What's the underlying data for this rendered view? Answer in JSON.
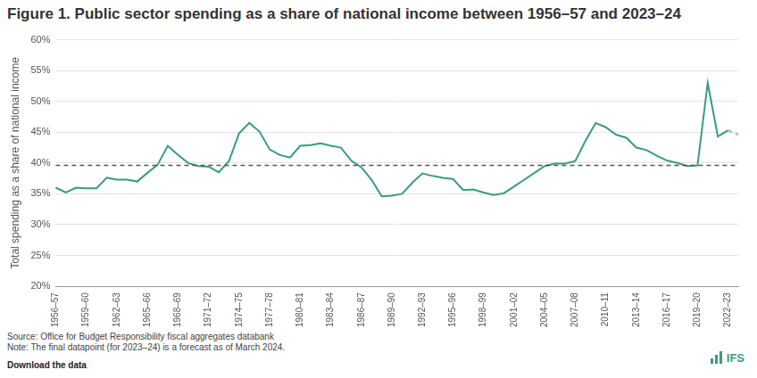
{
  "chart_data": {
    "type": "line",
    "title": "Figure 1. Public sector spending as a share of national income between 1956–57 and 2023–24",
    "y_label": "Total spending as a share of national income",
    "source": "Source: Office for Budget Responsibility fiscal aggregates databank",
    "note": "Note: The final datapoint (for 2023–24) is a forecast as of March 2024.",
    "download": "Download the data",
    "logo": "IFS",
    "categories": [
      "1956–57",
      null,
      null,
      "1959–60",
      null,
      null,
      "1962–63",
      null,
      null,
      "1965–66",
      null,
      null,
      "1968–69",
      null,
      null,
      "1971–72",
      null,
      null,
      "1974–75",
      null,
      null,
      "1977–78",
      null,
      null,
      "1980–81",
      null,
      null,
      "1983–84",
      null,
      null,
      "1986–87",
      null,
      null,
      "1989–90",
      null,
      null,
      "1992–93",
      null,
      null,
      "1995–96",
      null,
      null,
      "1998–99",
      null,
      null,
      "2001–02",
      null,
      null,
      "2004–05",
      null,
      null,
      "2007–08",
      null,
      null,
      "2010–11",
      null,
      null,
      "2013–14",
      null,
      null,
      "2016–17",
      null,
      null,
      "2019–20",
      null,
      null,
      "2022–23",
      null
    ],
    "series": [
      {
        "color": "#3a9c7a",
        "line_style": "solid",
        "values": [
          36.0,
          35.2,
          36.0,
          35.9,
          35.9,
          37.6,
          37.3,
          37.3,
          37.0,
          38.4,
          39.7,
          42.8,
          41.3,
          40.0,
          39.5,
          39.4,
          38.5,
          40.3,
          44.8,
          46.5,
          45.1,
          42.2,
          41.3,
          40.9,
          42.8,
          42.9,
          43.2,
          42.8,
          42.5,
          40.4,
          39.3,
          37.3,
          34.6,
          34.7,
          35.0,
          36.8,
          38.3,
          37.9,
          37.6,
          37.4,
          35.6,
          35.7,
          35.2,
          34.8,
          35.1,
          36.2,
          37.3,
          38.4,
          39.5,
          39.9,
          39.9,
          40.3,
          43.6,
          46.5,
          45.8,
          44.6,
          44.1,
          42.5,
          42.1,
          41.2,
          40.4,
          40.0,
          39.5,
          39.6,
          53.0,
          44.3,
          45.3,
          null
        ]
      },
      {
        "color": "#8fbfae",
        "line_style": "dashed",
        "values": [
          null,
          null,
          null,
          null,
          null,
          null,
          null,
          null,
          null,
          null,
          null,
          null,
          null,
          null,
          null,
          null,
          null,
          null,
          null,
          null,
          null,
          null,
          null,
          null,
          null,
          null,
          null,
          null,
          null,
          null,
          null,
          null,
          null,
          null,
          null,
          null,
          null,
          null,
          null,
          null,
          null,
          null,
          null,
          null,
          null,
          null,
          null,
          null,
          null,
          null,
          null,
          null,
          null,
          null,
          null,
          null,
          null,
          null,
          null,
          null,
          null,
          null,
          null,
          null,
          null,
          null,
          45.3,
          44.6
        ]
      }
    ],
    "hline": {
      "value": 39.6,
      "color": "#555555",
      "line_style": "dashed"
    },
    "ylim": [
      20,
      60
    ],
    "yticks": [
      {
        "value": 20,
        "label": "20%"
      },
      {
        "value": 25,
        "label": "25%"
      },
      {
        "value": 30,
        "label": "30%"
      },
      {
        "value": 35,
        "label": "35%"
      },
      {
        "value": 40,
        "label": "40%"
      },
      {
        "value": 45,
        "label": "45%"
      },
      {
        "value": 50,
        "label": "50%"
      },
      {
        "value": 55,
        "label": "55%"
      },
      {
        "value": 60,
        "label": "60%"
      }
    ],
    "grid": true
  }
}
